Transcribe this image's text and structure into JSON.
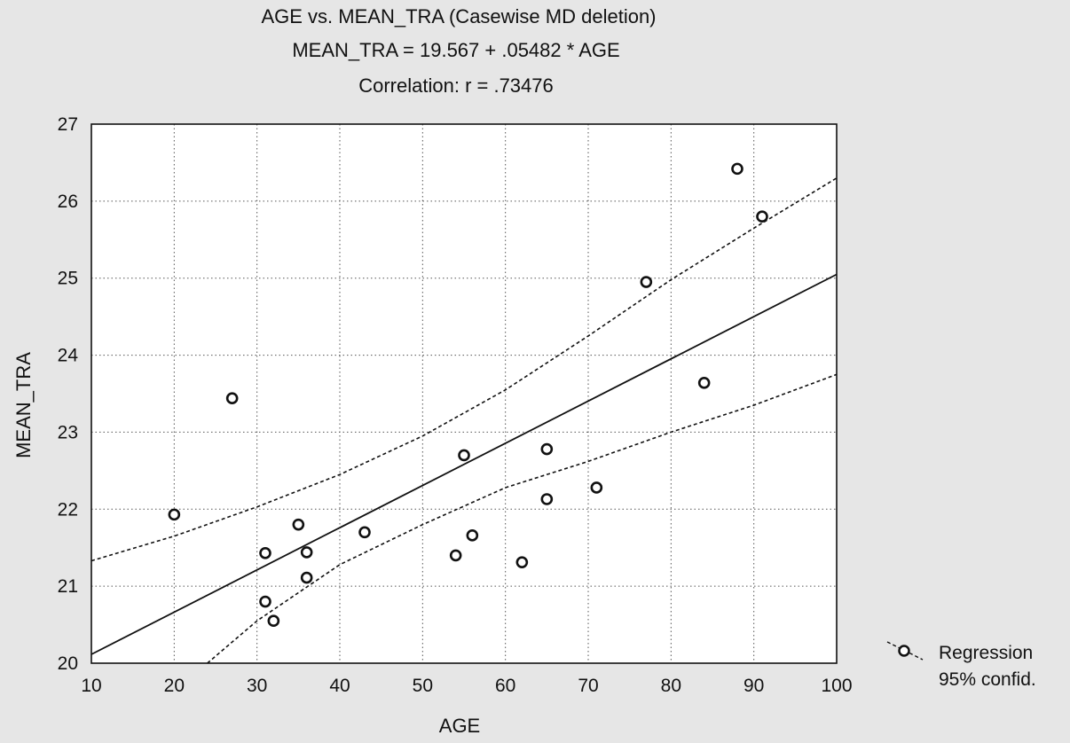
{
  "chart_data": {
    "type": "scatter",
    "title": "AGE vs. MEAN_TRA (Casewise MD deletion)",
    "subtitle": "MEAN_TRA = 19.567 + .05482 * AGE",
    "correlation_text": "Correlation: r = .73476",
    "xlabel": "AGE",
    "ylabel": "MEAN_TRA",
    "xlim": [
      10,
      100
    ],
    "ylim": [
      20,
      27
    ],
    "xticks": [
      10,
      20,
      30,
      40,
      50,
      60,
      70,
      80,
      90,
      100
    ],
    "yticks": [
      20,
      21,
      22,
      23,
      24,
      25,
      26,
      27
    ],
    "grid": true,
    "legend_position": "bottom-right",
    "legend": [
      "Regression",
      "95% confid."
    ],
    "regression": {
      "intercept": 19.567,
      "slope": 0.05482
    },
    "confidence_band": {
      "upper": [
        [
          10,
          21.33
        ],
        [
          20,
          21.65
        ],
        [
          30,
          22.03
        ],
        [
          40,
          22.45
        ],
        [
          50,
          22.95
        ],
        [
          60,
          23.55
        ],
        [
          70,
          24.25
        ],
        [
          80,
          24.98
        ],
        [
          90,
          25.65
        ],
        [
          100,
          26.3
        ]
      ],
      "lower": [
        [
          24,
          20.0
        ],
        [
          30,
          20.55
        ],
        [
          40,
          21.28
        ],
        [
          50,
          21.8
        ],
        [
          60,
          22.28
        ],
        [
          70,
          22.62
        ],
        [
          80,
          23.0
        ],
        [
          90,
          23.35
        ],
        [
          100,
          23.75
        ]
      ]
    },
    "points": [
      {
        "x": 20,
        "y": 21.93
      },
      {
        "x": 27,
        "y": 23.44
      },
      {
        "x": 31,
        "y": 21.43
      },
      {
        "x": 31,
        "y": 20.8
      },
      {
        "x": 32,
        "y": 20.55
      },
      {
        "x": 35,
        "y": 21.8
      },
      {
        "x": 36,
        "y": 21.44
      },
      {
        "x": 36,
        "y": 21.11
      },
      {
        "x": 43,
        "y": 21.7
      },
      {
        "x": 54,
        "y": 21.4
      },
      {
        "x": 55,
        "y": 22.7
      },
      {
        "x": 56,
        "y": 21.66
      },
      {
        "x": 62,
        "y": 21.31
      },
      {
        "x": 65,
        "y": 22.78
      },
      {
        "x": 65,
        "y": 22.13
      },
      {
        "x": 71,
        "y": 22.28
      },
      {
        "x": 77,
        "y": 24.95
      },
      {
        "x": 84,
        "y": 23.64
      },
      {
        "x": 88,
        "y": 26.42
      },
      {
        "x": 91,
        "y": 25.8
      }
    ],
    "colors": {
      "background": "#e6e6e6",
      "plot_background": "#ffffff",
      "ink": "#111111"
    }
  }
}
